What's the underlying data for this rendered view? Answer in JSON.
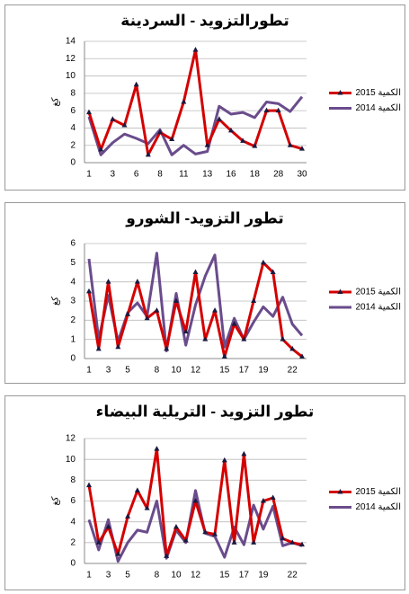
{
  "chart_data": [
    {
      "type": "line",
      "title": "تطورالتزويد - السردينة",
      "ylabel": "كغ",
      "categories": [
        "1",
        null,
        "3",
        null,
        "6",
        null,
        "8",
        null,
        "11",
        null,
        "13",
        null,
        "16",
        null,
        "18",
        null,
        "28",
        null,
        "30"
      ],
      "series": [
        {
          "name": "الكمية 2015",
          "color": "#d40000",
          "marker": "triangle",
          "values": [
            5.8,
            1.5,
            5,
            4.3,
            9,
            0.9,
            3.5,
            2.7,
            7,
            13,
            2,
            5,
            3.7,
            2.5,
            1.9,
            6,
            6,
            2,
            1.6
          ]
        },
        {
          "name": "الكمية 2014",
          "color": "#6a4c8c",
          "marker": "none",
          "values": [
            5.3,
            0.9,
            2.3,
            3.3,
            2.8,
            2.2,
            3.8,
            0.9,
            2,
            1,
            1.3,
            6.5,
            5.6,
            5.8,
            5.2,
            7,
            6.8,
            5.9,
            7.6
          ]
        }
      ],
      "ylim": [
        0,
        14
      ],
      "yticks": [
        0,
        2,
        4,
        6,
        8,
        10,
        12,
        14
      ],
      "grid": true,
      "legend": "right"
    },
    {
      "type": "line",
      "title": "تطور التزويد- الشورو",
      "ylabel": "كغ",
      "categories": [
        "1",
        null,
        "3",
        null,
        "5",
        null,
        null,
        "8",
        null,
        "10",
        null,
        "12",
        null,
        null,
        "15",
        null,
        "17",
        null,
        "19",
        null,
        null,
        "22",
        null
      ],
      "series": [
        {
          "name": "الكمية 2015",
          "color": "#d40000",
          "marker": "triangle",
          "values": [
            3.5,
            0.5,
            4,
            0.6,
            2.3,
            4,
            2.1,
            2.5,
            0.5,
            3,
            1.4,
            4.5,
            1,
            2.5,
            0.1,
            1.8,
            1,
            3,
            5,
            4.5,
            1,
            0.5,
            0.1
          ]
        },
        {
          "name": "الكمية 2014",
          "color": "#6a4c8c",
          "marker": "none",
          "values": [
            5.2,
            1,
            3.3,
            0.9,
            2.4,
            2.9,
            2.2,
            5.5,
            0.4,
            3.4,
            0.7,
            2.8,
            4.3,
            5.4,
            0.6,
            2.1,
            1,
            1.9,
            2.7,
            2.2,
            3.2,
            1.8,
            1.2
          ]
        }
      ],
      "ylim": [
        0,
        6
      ],
      "yticks": [
        0,
        1,
        2,
        3,
        4,
        5,
        6
      ],
      "grid": true,
      "legend": "right"
    },
    {
      "type": "line",
      "title": "تطور التزويد - التريلية البيضاء",
      "ylabel": "كغ",
      "categories": [
        "1",
        null,
        "3",
        null,
        "5",
        null,
        null,
        "8",
        null,
        "10",
        null,
        "12",
        null,
        null,
        "15",
        null,
        "17",
        null,
        "19",
        null,
        null,
        "22",
        null
      ],
      "series": [
        {
          "name": "الكمية 2015",
          "color": "#d40000",
          "marker": "triangle",
          "values": [
            7.5,
            2,
            3.5,
            0.9,
            4.5,
            7,
            5.3,
            11,
            0.7,
            3.5,
            2.2,
            6,
            3,
            2.8,
            9.9,
            2,
            10.5,
            2,
            6,
            6.3,
            2.4,
            2,
            1.8
          ]
        },
        {
          "name": "الكمية 2014",
          "color": "#6a4c8c",
          "marker": "none",
          "values": [
            4.2,
            1.3,
            4.2,
            0.2,
            2,
            3.2,
            3,
            6,
            0.5,
            3.2,
            2,
            7,
            2.9,
            2.6,
            0.6,
            3.5,
            1.8,
            5.6,
            3.3,
            5.5,
            1.7,
            2,
            1.7
          ]
        }
      ],
      "ylim": [
        0,
        12
      ],
      "yticks": [
        0,
        2,
        4,
        6,
        8,
        10,
        12
      ],
      "grid": true,
      "legend": "right"
    }
  ]
}
